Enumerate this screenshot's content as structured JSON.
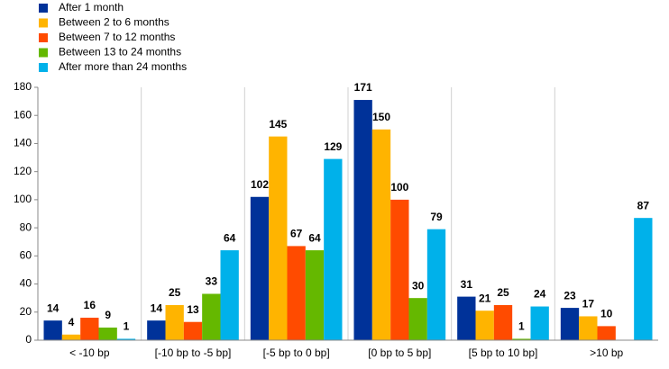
{
  "chart_data": {
    "type": "bar",
    "categories": [
      "< -10 bp",
      "[-10 bp to -5 bp]",
      "[-5 bp to 0 bp]",
      "[0 bp to 5 bp]",
      "[5 bp to 10 bp]",
      ">10 bp"
    ],
    "series": [
      {
        "name": "After 1 month",
        "color": "#003299",
        "values": [
          14,
          14,
          102,
          171,
          31,
          23
        ]
      },
      {
        "name": "Between 2 to 6 months",
        "color": "#ffb400",
        "values": [
          4,
          25,
          145,
          150,
          21,
          17
        ]
      },
      {
        "name": "Between 7 to 12 months",
        "color": "#ff4b00",
        "values": [
          16,
          13,
          67,
          100,
          25,
          10
        ]
      },
      {
        "name": "Between 13 to 24 months",
        "color": "#65b800",
        "values": [
          9,
          33,
          64,
          30,
          1,
          null
        ]
      },
      {
        "name": "After more than 24 months",
        "color": "#00b1ea",
        "values": [
          1,
          64,
          129,
          79,
          24,
          87
        ]
      }
    ],
    "ylim": [
      0,
      180
    ],
    "yticks": [
      0,
      20,
      40,
      60,
      80,
      100,
      120,
      140,
      160,
      180
    ],
    "legend": "top-left"
  }
}
